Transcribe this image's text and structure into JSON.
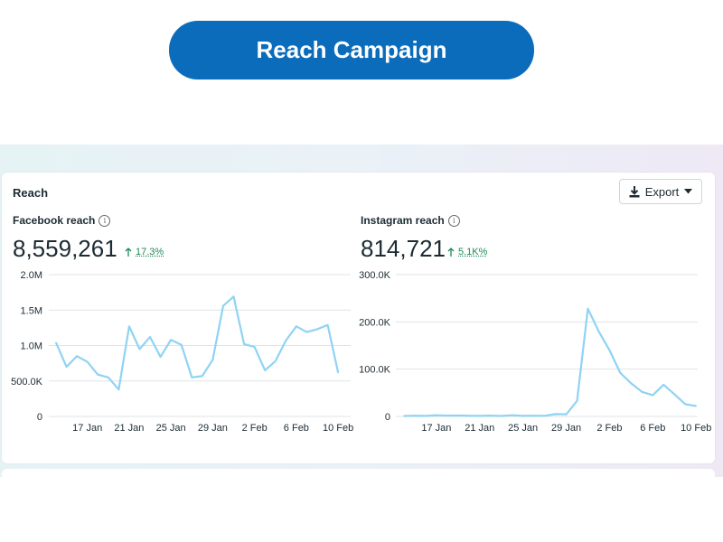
{
  "banner": {
    "title": "Reach Campaign"
  },
  "card": {
    "title": "Reach",
    "export_label": "Export"
  },
  "icons": {
    "info": "info-icon",
    "export": "download-icon",
    "dropdown": "caret-down-icon",
    "change": "arrow-up-icon"
  },
  "colors": {
    "banner": "#0a6cba",
    "line": "#8fd3f4",
    "positive": "#1e8a57"
  },
  "chart_data": [
    {
      "type": "line",
      "title": "Facebook reach",
      "total": "8,559,261",
      "change": "17.3%",
      "ylim": [
        0,
        2000000
      ],
      "y_ticks": [
        "0",
        "500.0K",
        "1.0M",
        "1.5M",
        "2.0M"
      ],
      "y_tick_values": [
        0,
        500000,
        1000000,
        1500000,
        2000000
      ],
      "x_ticks": [
        "17 Jan",
        "21 Jan",
        "25 Jan",
        "29 Jan",
        "2 Feb",
        "6 Feb",
        "10 Feb"
      ],
      "x_tick_index": [
        3,
        7,
        11,
        15,
        19,
        23,
        27
      ],
      "series": [
        {
          "values": [
            1040000,
            700000,
            850000,
            770000,
            590000,
            550000,
            380000,
            1270000,
            950000,
            1120000,
            840000,
            1080000,
            1010000,
            550000,
            570000,
            800000,
            1560000,
            1690000,
            1020000,
            980000,
            650000,
            780000,
            1070000,
            1270000,
            1190000,
            1230000,
            1290000,
            620000
          ]
        }
      ],
      "grid": true
    },
    {
      "type": "line",
      "title": "Instagram reach",
      "total": "814,721",
      "change": "5.1K%",
      "ylim": [
        0,
        300000
      ],
      "y_ticks": [
        "0",
        "100.0K",
        "200.0K",
        "300.0K"
      ],
      "y_tick_values": [
        0,
        100000,
        200000,
        300000
      ],
      "x_ticks": [
        "17 Jan",
        "21 Jan",
        "25 Jan",
        "29 Jan",
        "2 Feb",
        "6 Feb",
        "10 Feb"
      ],
      "x_tick_index": [
        3,
        7,
        11,
        15,
        19,
        23,
        27
      ],
      "series": [
        {
          "values": [
            1000,
            1500,
            1200,
            2500,
            1800,
            2000,
            1500,
            1200,
            1800,
            1000,
            2500,
            1200,
            1500,
            1300,
            5000,
            4500,
            33000,
            228000,
            180000,
            140000,
            92000,
            70000,
            52000,
            45000,
            67000,
            47000,
            26000,
            22000
          ]
        }
      ],
      "grid": true
    }
  ]
}
